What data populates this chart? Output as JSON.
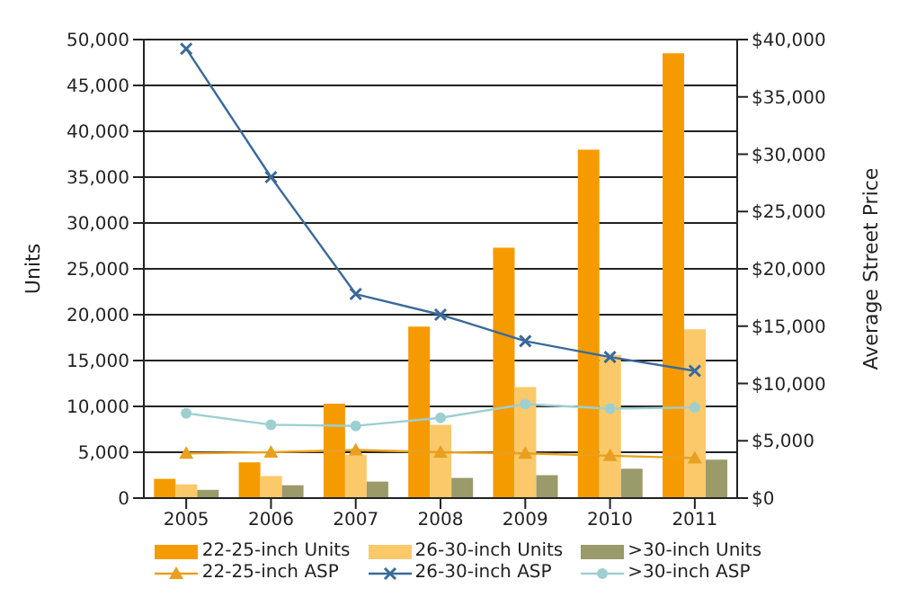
{
  "chart_data": {
    "type": "bar",
    "ylabel": "Units",
    "y2label": "Average Street Price",
    "categories": [
      "2005",
      "2006",
      "2007",
      "2008",
      "2009",
      "2010",
      "2011"
    ],
    "series": [
      {
        "name": "22-25-inch Units",
        "color": "#f59b00",
        "values": [
          2100,
          3900,
          10300,
          18700,
          27300,
          38000,
          48500
        ]
      },
      {
        "name": "26-30-inch Units",
        "color": "#fbc96a",
        "values": [
          1500,
          2400,
          4700,
          8000,
          12100,
          15600,
          18400
        ]
      },
      {
        "name": ">30-inch Units",
        "color": "#9a9a6a",
        "values": [
          900,
          1400,
          1800,
          2200,
          2500,
          3200,
          4200
        ]
      },
      {
        "name": "22-25-inch ASP",
        "type": "line",
        "axis": "y2",
        "marker": "triangle",
        "color": "#e8a020",
        "values": [
          3900,
          4000,
          4200,
          4000,
          3900,
          3700,
          3500
        ]
      },
      {
        "name": "26-30-inch ASP",
        "type": "line",
        "axis": "y2",
        "marker": "cross",
        "color": "#3a6a9a",
        "values": [
          39200,
          28000,
          17800,
          16000,
          13700,
          12300,
          11100
        ]
      },
      {
        "name": ">30-inch ASP",
        "type": "line",
        "axis": "y2",
        "marker": "circle",
        "color": "#9ecfd0",
        "values": [
          7400,
          6400,
          6300,
          7000,
          8200,
          7800,
          7900
        ]
      }
    ],
    "ylim": [
      0,
      50000
    ],
    "yticks": [
      0,
      {
        "value": 5000,
        "label": "5,000"
      },
      {
        "value": 10000,
        "label": "10,000"
      },
      {
        "value": 15000,
        "label": "15,000"
      },
      {
        "value": 20000,
        "label": "20,000"
      },
      {
        "value": 25000,
        "label": "25,000"
      },
      {
        "value": 30000,
        "label": "30,000"
      },
      {
        "value": 35000,
        "label": "35,000"
      },
      {
        "value": 40000,
        "label": "40,000"
      },
      {
        "value": 45000,
        "label": "45,000"
      },
      {
        "value": 50000,
        "label": "50,000"
      }
    ],
    "y2lim": [
      0,
      40000
    ],
    "y2ticks": [
      {
        "value": 0,
        "label": "$0"
      },
      {
        "value": 5000,
        "label": "$5,000"
      },
      {
        "value": 10000,
        "label": "$10,000"
      },
      {
        "value": 15000,
        "label": "$15,000"
      },
      {
        "value": 20000,
        "label": "$20,000"
      },
      {
        "value": 25000,
        "label": "$25,000"
      },
      {
        "value": 30000,
        "label": "$30,000"
      },
      {
        "value": 35000,
        "label": "$35,000"
      },
      {
        "value": 40000,
        "label": "$40,000"
      }
    ],
    "grid": "y",
    "legend": "bottom"
  }
}
